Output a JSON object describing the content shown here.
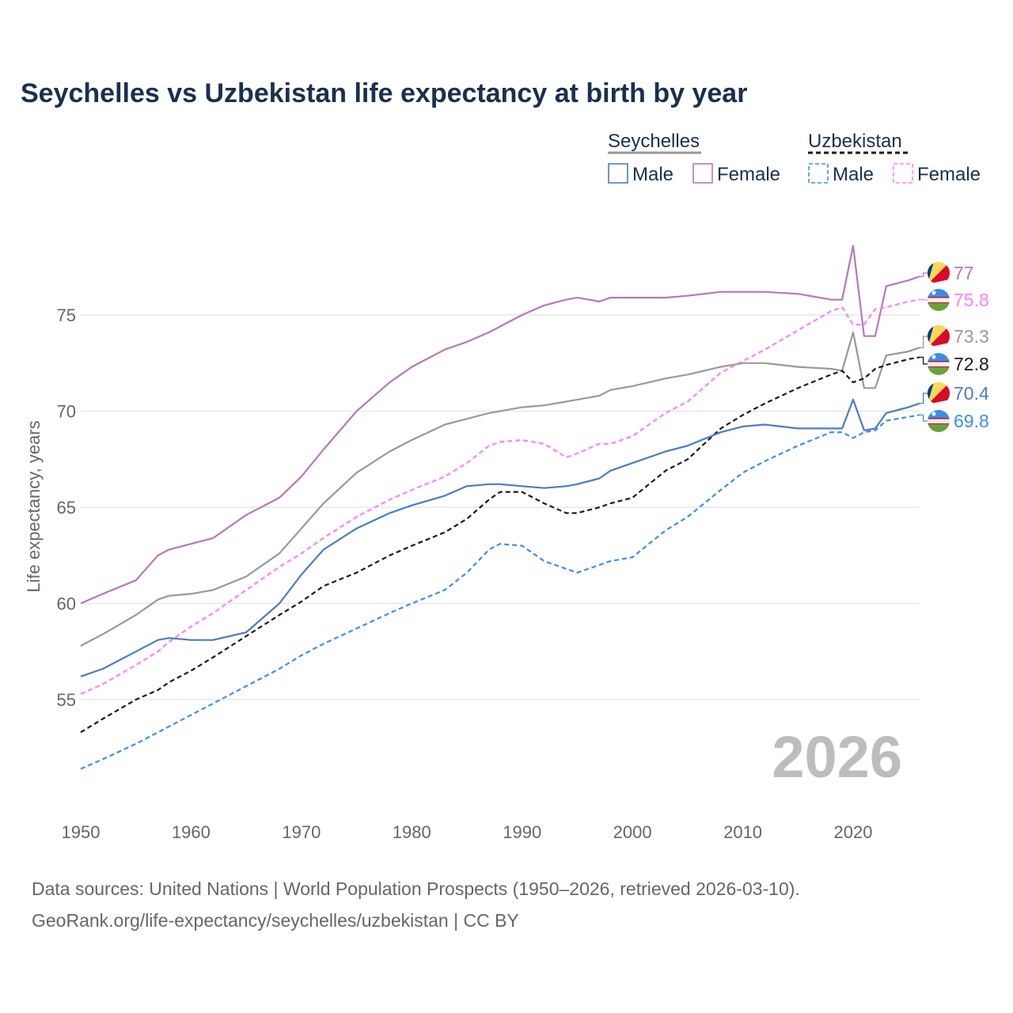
{
  "chart_data": {
    "type": "line",
    "title": "Seychelles vs Uzbekistan life expectancy at birth by year",
    "xlabel": "",
    "ylabel": "Life expectancy, years",
    "xlim": [
      1950,
      2026
    ],
    "ylim": [
      50,
      80
    ],
    "x_ticks": [
      "1950",
      "1960",
      "1970",
      "1980",
      "1990",
      "2000",
      "2010",
      "2020"
    ],
    "y_ticks": [
      "55",
      "60",
      "65",
      "70",
      "75"
    ],
    "grid": "horizontal",
    "watermark": "2026",
    "legend": {
      "placement": "top-right",
      "groups": [
        {
          "country": "Seychelles",
          "items": [
            "Male",
            "Female"
          ]
        },
        {
          "country": "Uzbekistan",
          "items": [
            "Male",
            "Female"
          ]
        }
      ]
    },
    "x": [
      1950,
      1952,
      1955,
      1957,
      1958,
      1960,
      1962,
      1965,
      1968,
      1970,
      1972,
      1975,
      1978,
      1980,
      1983,
      1985,
      1987,
      1988,
      1990,
      1992,
      1994,
      1995,
      1997,
      1998,
      2000,
      2003,
      2005,
      2008,
      2010,
      2012,
      2015,
      2018,
      2019,
      2020,
      2021,
      2022,
      2023,
      2025,
      2026
    ],
    "series": [
      {
        "name": "Seychelles Female",
        "color": "#b679b6",
        "dash": false,
        "end_label": "77",
        "values": [
          60.0,
          60.5,
          61.2,
          62.5,
          62.8,
          63.1,
          63.4,
          64.6,
          65.5,
          66.6,
          68.0,
          70.0,
          71.5,
          72.3,
          73.2,
          73.6,
          74.1,
          74.4,
          75.0,
          75.5,
          75.8,
          75.9,
          75.7,
          75.9,
          75.9,
          75.9,
          76.0,
          76.2,
          76.2,
          76.2,
          76.1,
          75.8,
          75.8,
          78.6,
          73.9,
          73.9,
          76.5,
          76.8,
          77.0
        ]
      },
      {
        "name": "Uzbekistan Female",
        "color": "#ff80ff",
        "dash": true,
        "end_label": "75.8",
        "values": [
          55.3,
          55.8,
          56.8,
          57.5,
          58.0,
          58.8,
          59.5,
          60.7,
          61.9,
          62.6,
          63.4,
          64.5,
          65.4,
          65.9,
          66.6,
          67.3,
          68.2,
          68.4,
          68.5,
          68.3,
          67.6,
          67.8,
          68.3,
          68.3,
          68.7,
          69.9,
          70.5,
          72.0,
          72.6,
          73.2,
          74.2,
          75.2,
          75.4,
          74.5,
          74.5,
          75.3,
          75.4,
          75.7,
          75.8
        ]
      },
      {
        "name": "Seychelles",
        "color": "#999999",
        "dash": false,
        "end_label": "73.3",
        "values": [
          57.8,
          58.4,
          59.4,
          60.2,
          60.4,
          60.5,
          60.7,
          61.4,
          62.6,
          63.9,
          65.2,
          66.8,
          67.9,
          68.5,
          69.3,
          69.6,
          69.9,
          70.0,
          70.2,
          70.3,
          70.5,
          70.6,
          70.8,
          71.1,
          71.3,
          71.7,
          71.9,
          72.3,
          72.5,
          72.5,
          72.3,
          72.2,
          72.1,
          74.1,
          71.2,
          71.2,
          72.9,
          73.1,
          73.3
        ]
      },
      {
        "name": "Uzbekistan",
        "color": "#1a1a1a",
        "dash": true,
        "end_label": "72.8",
        "values": [
          53.3,
          54.0,
          55.0,
          55.5,
          55.9,
          56.5,
          57.2,
          58.3,
          59.4,
          60.1,
          60.9,
          61.6,
          62.5,
          63.0,
          63.7,
          64.4,
          65.4,
          65.8,
          65.8,
          65.2,
          64.7,
          64.7,
          65.0,
          65.2,
          65.5,
          66.9,
          67.5,
          69.1,
          69.8,
          70.4,
          71.2,
          71.9,
          72.1,
          71.5,
          71.7,
          72.2,
          72.4,
          72.7,
          72.8
        ]
      },
      {
        "name": "Seychelles Male",
        "color": "#4a7cc9",
        "dash": false,
        "end_label": "70.4",
        "values": [
          56.2,
          56.6,
          57.5,
          58.1,
          58.2,
          58.1,
          58.1,
          58.5,
          60.0,
          61.5,
          62.8,
          63.9,
          64.7,
          65.1,
          65.6,
          66.1,
          66.2,
          66.2,
          66.1,
          66.0,
          66.1,
          66.2,
          66.5,
          66.9,
          67.3,
          67.9,
          68.2,
          68.9,
          69.2,
          69.3,
          69.1,
          69.1,
          69.1,
          70.6,
          69.0,
          69.1,
          69.9,
          70.2,
          70.4
        ]
      },
      {
        "name": "Uzbekistan Male",
        "color": "#3d8bff",
        "dash": true,
        "end_label": "69.8",
        "values": [
          51.4,
          51.9,
          52.7,
          53.3,
          53.6,
          54.2,
          54.8,
          55.7,
          56.6,
          57.3,
          57.9,
          58.7,
          59.5,
          60.0,
          60.7,
          61.6,
          62.8,
          63.1,
          63.0,
          62.2,
          61.8,
          61.6,
          62.0,
          62.2,
          62.4,
          63.8,
          64.5,
          65.9,
          66.8,
          67.4,
          68.2,
          68.9,
          68.9,
          68.6,
          68.9,
          69.0,
          69.5,
          69.7,
          69.8
        ]
      }
    ]
  },
  "source": {
    "line1": "Data sources: United Nations | World Population Prospects (1950–2026, retrieved 2026-03-10).",
    "line2": "GeoRank.org/life-expectancy/seychelles/uzbekistan | CC BY"
  }
}
